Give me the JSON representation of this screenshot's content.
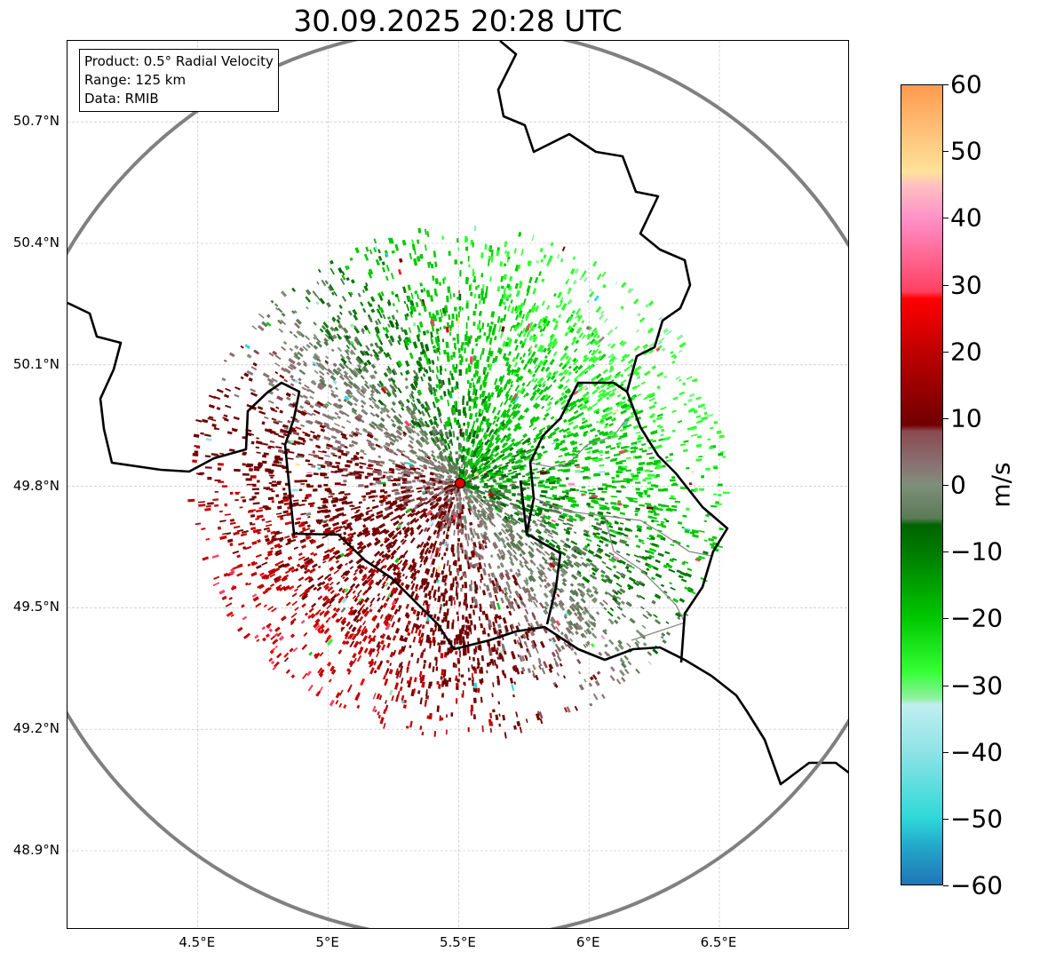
{
  "title": "30.09.2025 20:28 UTC",
  "info_box": [
    "Product: 0.5° Radial Velocity",
    "Range: 125 km",
    "Data: RMIB"
  ],
  "lat_ticks": [
    {
      "label": "50.7°N",
      "value": 50.7
    },
    {
      "label": "50.4°N",
      "value": 50.4
    },
    {
      "label": "50.1°N",
      "value": 50.1
    },
    {
      "label": "49.8°N",
      "value": 49.8
    },
    {
      "label": "49.5°N",
      "value": 49.5
    },
    {
      "label": "49.2°N",
      "value": 49.2
    },
    {
      "label": "48.9°N",
      "value": 48.9
    }
  ],
  "lon_ticks": [
    {
      "label": "4.5°E",
      "value": 4.5
    },
    {
      "label": "5°E",
      "value": 5.0
    },
    {
      "label": "5.5°E",
      "value": 5.5
    },
    {
      "label": "6°E",
      "value": 6.0
    },
    {
      "label": "6.5°E",
      "value": 6.5
    }
  ],
  "map_extent": {
    "lon": [
      4.0,
      7.0
    ],
    "lat": [
      48.8,
      50.9
    ]
  },
  "radar_site": {
    "lon": 5.505,
    "lat": 49.914
  },
  "range_km": 125,
  "colorbar": {
    "label": "m/s",
    "range": [
      -60,
      60
    ],
    "ticks": [
      "60",
      "50",
      "40",
      "30",
      "20",
      "10",
      "0",
      "−10",
      "−20",
      "−30",
      "−40",
      "−50",
      "−60"
    ],
    "tick_values": [
      60,
      50,
      40,
      30,
      20,
      10,
      0,
      -10,
      -20,
      -30,
      -40,
      -50,
      -60
    ],
    "stops": [
      {
        "v": -60,
        "c": "#1f77b4"
      },
      {
        "v": -54,
        "c": "#22aacc"
      },
      {
        "v": -50,
        "c": "#2ed8d8"
      },
      {
        "v": -40,
        "c": "#8fe3e6"
      },
      {
        "v": -33,
        "c": "#c0eef0"
      },
      {
        "v": -32,
        "c": "#90f0a0"
      },
      {
        "v": -28,
        "c": "#33ff33"
      },
      {
        "v": -20,
        "c": "#00c800"
      },
      {
        "v": -10,
        "c": "#007a00"
      },
      {
        "v": -6,
        "c": "#006400"
      },
      {
        "v": -5,
        "c": "#5a7a55"
      },
      {
        "v": 0,
        "c": "#7f8f7a"
      },
      {
        "v": 3,
        "c": "#8a7272"
      },
      {
        "v": 8,
        "c": "#8a4a50"
      },
      {
        "v": 9,
        "c": "#700000"
      },
      {
        "v": 20,
        "c": "#c00000"
      },
      {
        "v": 28,
        "c": "#ff0000"
      },
      {
        "v": 29,
        "c": "#ff4060"
      },
      {
        "v": 40,
        "c": "#ff90c8"
      },
      {
        "v": 45,
        "c": "#ffc0c0"
      },
      {
        "v": 47,
        "c": "#ffe29a"
      },
      {
        "v": 60,
        "c": "#ff9a50"
      }
    ]
  }
}
